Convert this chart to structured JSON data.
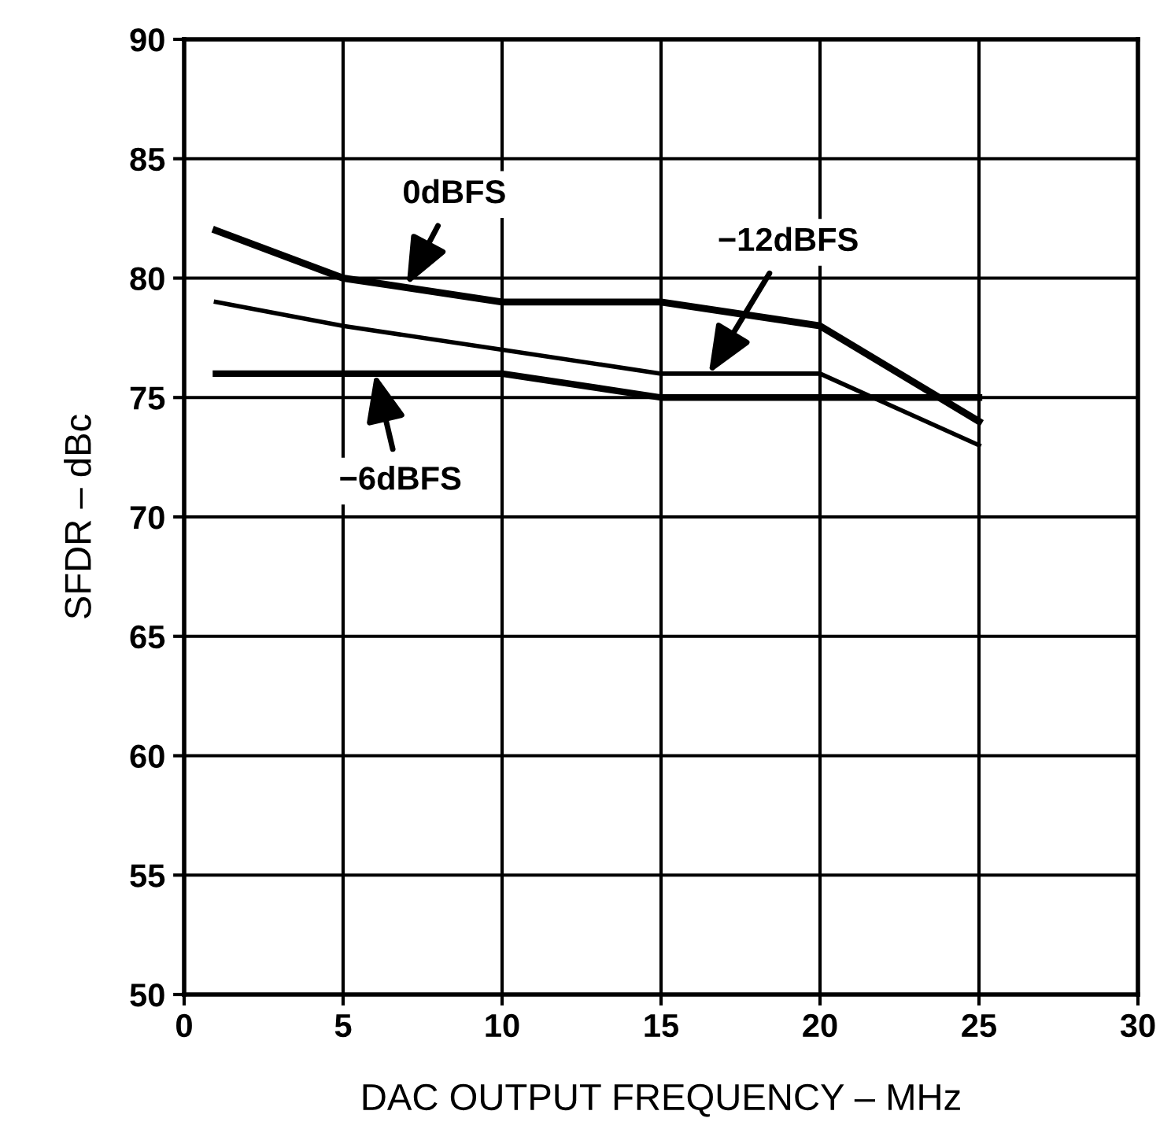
{
  "chart_data": {
    "type": "line",
    "xlabel": "DAC OUTPUT FREQUENCY – MHz",
    "ylabel": "SFDR – dBc",
    "x": [
      1,
      5,
      10,
      15,
      20,
      25
    ],
    "series": [
      {
        "color": "#000000",
        "values": [
          82,
          80,
          79,
          79,
          78,
          74
        ]
      },
      {
        "color": "#000000",
        "values": [
          79,
          78,
          77,
          76,
          76,
          73
        ]
      },
      {
        "color": "#000000",
        "values": [
          76,
          76,
          76,
          75,
          75,
          75
        ]
      }
    ],
    "annotations": [
      {
        "text": "0dBFS",
        "x": 7,
        "y": 79.7
      },
      {
        "text": "−12dBFS",
        "x": 16.5,
        "y": 76
      },
      {
        "text": "−6dBFS",
        "x": 6,
        "y": 76
      }
    ],
    "xlim": [
      0,
      30
    ],
    "xticks": [
      0,
      5,
      10,
      15,
      20,
      25,
      30
    ],
    "ylim": [
      50,
      90
    ],
    "yticks": [
      50,
      55,
      60,
      65,
      70,
      75,
      80,
      85,
      90
    ],
    "grid": true,
    "marker": "none",
    "line_style": "solid"
  }
}
